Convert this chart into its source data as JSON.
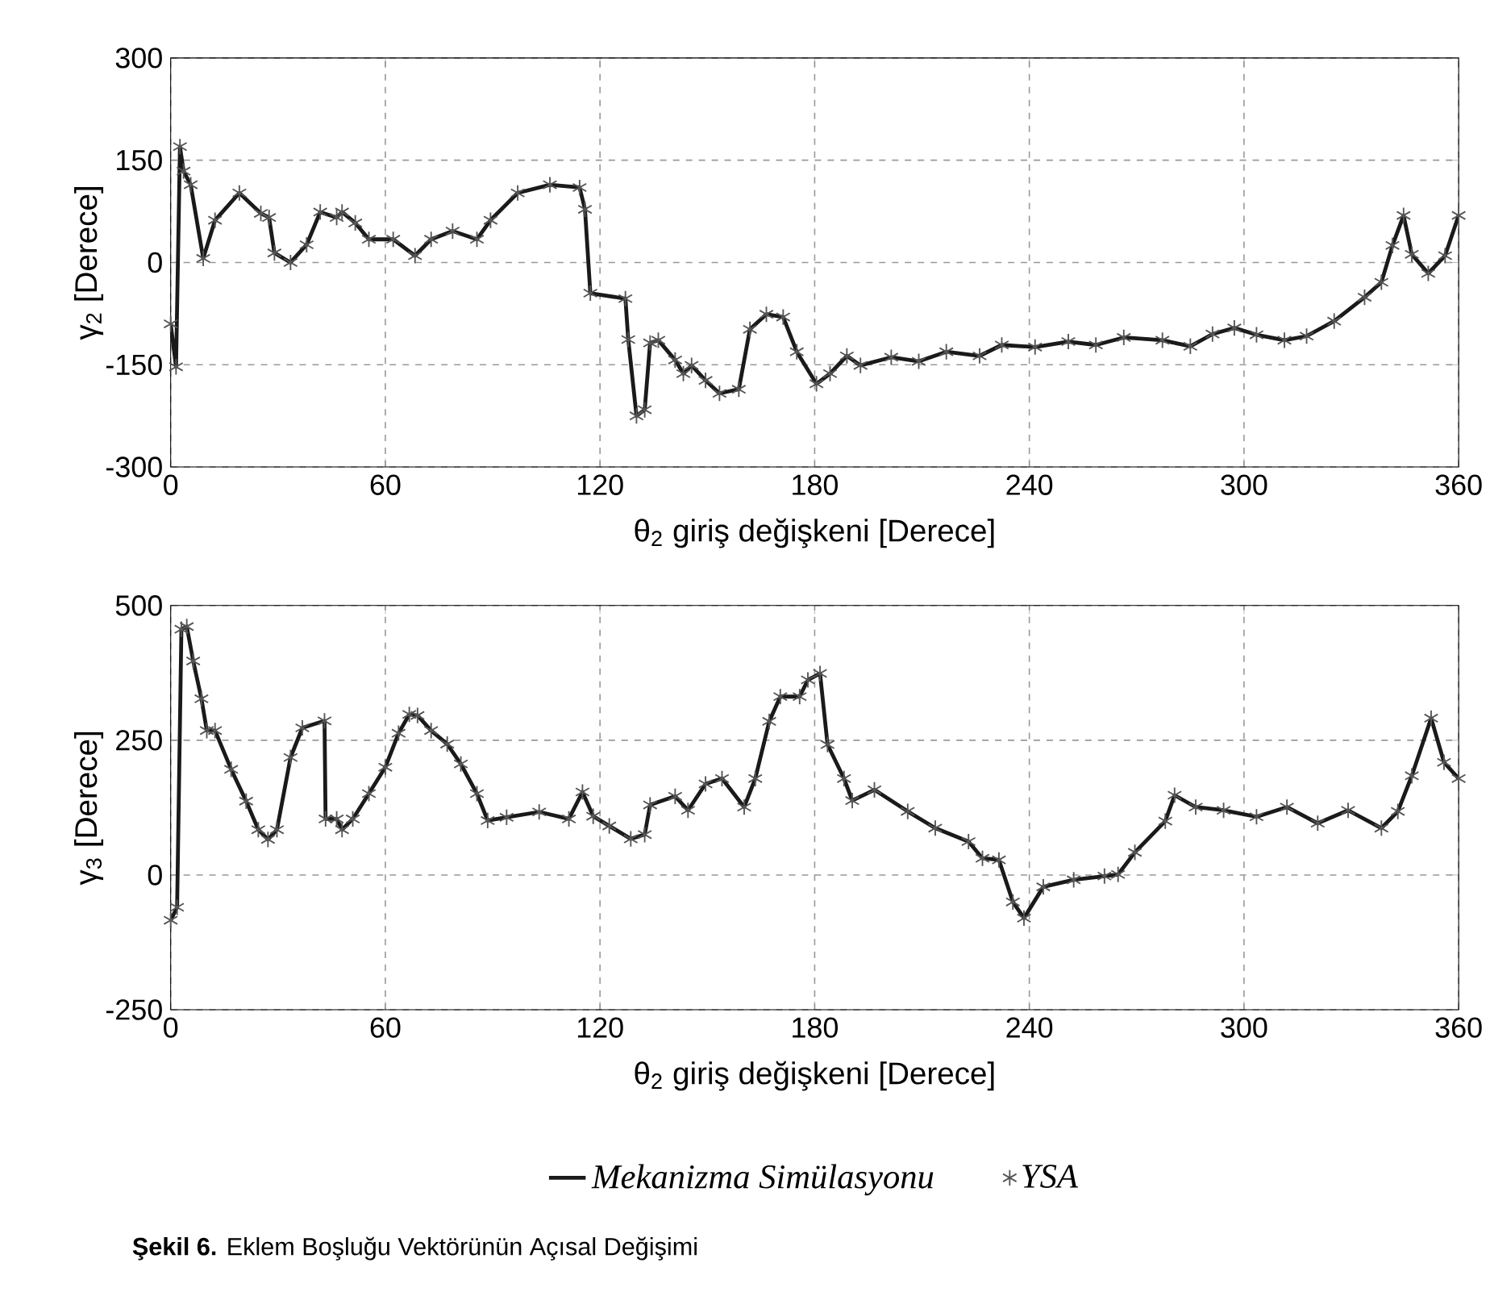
{
  "chart_data": [
    {
      "type": "line",
      "xlabel": "θ$_{2}$ giriş değişkeni [Derece]",
      "ylabel": "γ$_{2}$ [Derece]",
      "xlim": [
        0,
        360
      ],
      "xticks": [
        0,
        60,
        120,
        180,
        240,
        300,
        360
      ],
      "ylim": [
        -300,
        300
      ],
      "yticks": [
        -300,
        -150,
        0,
        150,
        300
      ],
      "grid": true,
      "series": [
        {
          "color": "#1a1a1a",
          "line_style": "solid",
          "x": [
            0,
            1.5,
            2.6,
            3.6,
            5.6,
            9.1,
            12.4,
            19.2,
            25.2,
            27.5,
            29,
            33.5,
            38,
            41.8,
            46.4,
            47.9,
            51.6,
            55.4,
            62.2,
            68.3,
            72.8,
            78.8,
            85.6,
            89.4,
            97,
            106,
            114.3,
            115.8,
            117.3,
            127.1,
            127.9,
            130.2,
            132.5,
            134,
            136.3,
            141,
            143.3,
            145.6,
            149.5,
            153.4,
            158.8,
            161.9,
            166.5,
            171.2,
            175,
            180.5,
            184.3,
            189,
            192.8,
            201.4,
            209.1,
            216.8,
            226.1,
            232.3,
            241.6,
            250.9,
            258.6,
            266.4,
            277.2,
            285,
            291.2,
            297.3,
            303.5,
            311.3,
            317.5,
            325.2,
            333.7,
            338.4,
            341.5,
            344.6,
            346.9,
            351.5,
            356.2,
            360
          ],
          "values": [
            -90,
            -153,
            170,
            134,
            114,
            6,
            62,
            102,
            72,
            66,
            14,
            0,
            26,
            74,
            66,
            74,
            58,
            34,
            34,
            10,
            34,
            46,
            34,
            62,
            102,
            114,
            110,
            78,
            -45,
            -53,
            -113,
            -225,
            -216,
            -118,
            -114,
            -143,
            -163,
            -151,
            -173,
            -192,
            -186,
            -98,
            -76,
            -80,
            -131,
            -178,
            -163,
            -137,
            -151,
            -139,
            -145,
            -131,
            -137,
            -121,
            -124,
            -116,
            -121,
            -110,
            -114,
            -123,
            -105,
            -96,
            -106,
            -114,
            -108,
            -86,
            -51,
            -29,
            25,
            69,
            12,
            -16,
            10,
            69
          ]
        },
        {
          "type": "scatter",
          "color": "#555555",
          "marker": "cross",
          "x": [
            0,
            1.5,
            2.6,
            3.6,
            5.6,
            9.1,
            12.4,
            19.2,
            25.2,
            27.5,
            29,
            33.5,
            38,
            41.8,
            46.4,
            47.9,
            51.6,
            55.4,
            62.2,
            68.3,
            72.8,
            78.8,
            85.6,
            89.4,
            97,
            106,
            114.3,
            115.8,
            117.3,
            127.1,
            127.9,
            130.2,
            132.5,
            134,
            136.3,
            141,
            143.3,
            145.6,
            149.5,
            153.4,
            158.8,
            161.9,
            166.5,
            171.2,
            175,
            180.5,
            184.3,
            189,
            192.8,
            201.4,
            209.1,
            216.8,
            226.1,
            232.3,
            241.6,
            250.9,
            258.6,
            266.4,
            277.2,
            285,
            291.2,
            297.3,
            303.5,
            311.3,
            317.5,
            325.2,
            333.7,
            338.4,
            341.5,
            344.6,
            346.9,
            351.5,
            356.2,
            360
          ],
          "values": [
            -90,
            -153,
            170,
            134,
            114,
            6,
            62,
            102,
            72,
            66,
            14,
            0,
            26,
            74,
            66,
            74,
            58,
            34,
            34,
            10,
            34,
            46,
            34,
            62,
            102,
            114,
            110,
            78,
            -45,
            -53,
            -113,
            -225,
            -216,
            -118,
            -114,
            -143,
            -163,
            -151,
            -173,
            -192,
            -186,
            -98,
            -76,
            -80,
            -131,
            -178,
            -163,
            -137,
            -151,
            -139,
            -145,
            -131,
            -137,
            -121,
            -124,
            -116,
            -121,
            -110,
            -114,
            -123,
            -105,
            -96,
            -106,
            -114,
            -108,
            -86,
            -51,
            -29,
            25,
            69,
            12,
            -16,
            10,
            69
          ]
        }
      ]
    },
    {
      "type": "line",
      "xlabel": "θ$_{2}$ giriş değişkeni [Derece]",
      "ylabel": "γ$_{3}$ [Derece]",
      "xlim": [
        0,
        360
      ],
      "xticks": [
        0,
        60,
        120,
        180,
        240,
        300,
        360
      ],
      "ylim": [
        -250,
        500
      ],
      "yticks": [
        -250,
        0,
        250,
        500
      ],
      "grid": true,
      "legend": "bottom",
      "annotations": [
        "**Şekil 6.** Eklem Boşluğu Vektörünün Açısal Değişimi"
      ],
      "series": [
        {
          "name": "Mekanizma Simülasyonu",
          "color": "#1a1a1a",
          "line_style": "solid",
          "x": [
            0,
            1.8,
            3,
            4.5,
            6.3,
            8.6,
            10.1,
            12.4,
            16.9,
            21.1,
            24.5,
            27.2,
            29.7,
            33.5,
            36.8,
            43,
            43.3,
            46.4,
            47.9,
            50.9,
            55.4,
            60,
            63.7,
            66.7,
            69,
            72.8,
            77.3,
            81.1,
            85.6,
            88.6,
            93.9,
            103,
            111.3,
            115.1,
            118.1,
            122.6,
            128.6,
            132.5,
            134,
            141,
            144.6,
            149.5,
            154.1,
            160.3,
            163.4,
            167.3,
            170.4,
            175.8,
            178.1,
            181.5,
            183.6,
            188.2,
            190.5,
            196.7,
            206,
            213.7,
            223,
            226.9,
            231.5,
            235.4,
            238.5,
            243.9,
            252.4,
            261,
            264.8,
            269.5,
            278,
            280.6,
            286.5,
            294.3,
            303.5,
            312,
            320.6,
            329.1,
            338.4,
            343,
            346.9,
            352.3,
            355.9,
            360
          ],
          "values": [
            -84,
            -60,
            456,
            461,
            397,
            327,
            268,
            268,
            196,
            137,
            84,
            66,
            84,
            218,
            273,
            286,
            104,
            104,
            84,
            104,
            151,
            200,
            263,
            298,
            296,
            268,
            243,
            206,
            151,
            101,
            107,
            117,
            104,
            154,
            109,
            91,
            67,
            75,
            130,
            146,
            120,
            169,
            179,
            126,
            179,
            285,
            331,
            331,
            362,
            374,
            242,
            179,
            138,
            158,
            118,
            87,
            62,
            31,
            28,
            -50,
            -80,
            -22,
            -9,
            -2,
            1,
            42,
            100,
            148,
            126,
            120,
            108,
            126,
            96,
            120,
            87,
            118,
            184,
            291,
            209,
            179
          ]
        },
        {
          "type": "scatter",
          "name": "YSA",
          "color": "#555555",
          "marker": "cross",
          "x": [
            0,
            1.8,
            3,
            4.5,
            6.3,
            8.6,
            10.1,
            12.4,
            16.9,
            21.1,
            24.5,
            27.2,
            29.7,
            33.5,
            36.8,
            43,
            43.3,
            46.4,
            47.9,
            50.9,
            55.4,
            60,
            63.7,
            66.7,
            69,
            72.8,
            77.3,
            81.1,
            85.6,
            88.6,
            93.9,
            103,
            111.3,
            115.1,
            118.1,
            122.6,
            128.6,
            132.5,
            134,
            141,
            144.6,
            149.5,
            154.1,
            160.3,
            163.4,
            167.3,
            170.4,
            175.8,
            178.1,
            181.5,
            183.6,
            188.2,
            190.5,
            196.7,
            206,
            213.7,
            223,
            226.9,
            231.5,
            235.4,
            238.5,
            243.9,
            252.4,
            261,
            264.8,
            269.5,
            278,
            280.6,
            286.5,
            294.3,
            303.5,
            312,
            320.6,
            329.1,
            338.4,
            343,
            346.9,
            352.3,
            355.9,
            360
          ],
          "values": [
            -84,
            -60,
            456,
            461,
            397,
            327,
            268,
            268,
            196,
            137,
            84,
            66,
            84,
            218,
            273,
            286,
            104,
            104,
            84,
            104,
            151,
            200,
            263,
            298,
            296,
            268,
            243,
            206,
            151,
            101,
            107,
            117,
            104,
            154,
            109,
            91,
            67,
            75,
            130,
            146,
            120,
            169,
            179,
            126,
            179,
            285,
            331,
            331,
            362,
            374,
            242,
            179,
            138,
            158,
            118,
            87,
            62,
            31,
            28,
            -50,
            -80,
            -22,
            -9,
            -2,
            1,
            42,
            100,
            148,
            126,
            120,
            108,
            126,
            96,
            120,
            87,
            118,
            184,
            291,
            209,
            179
          ]
        }
      ]
    }
  ]
}
